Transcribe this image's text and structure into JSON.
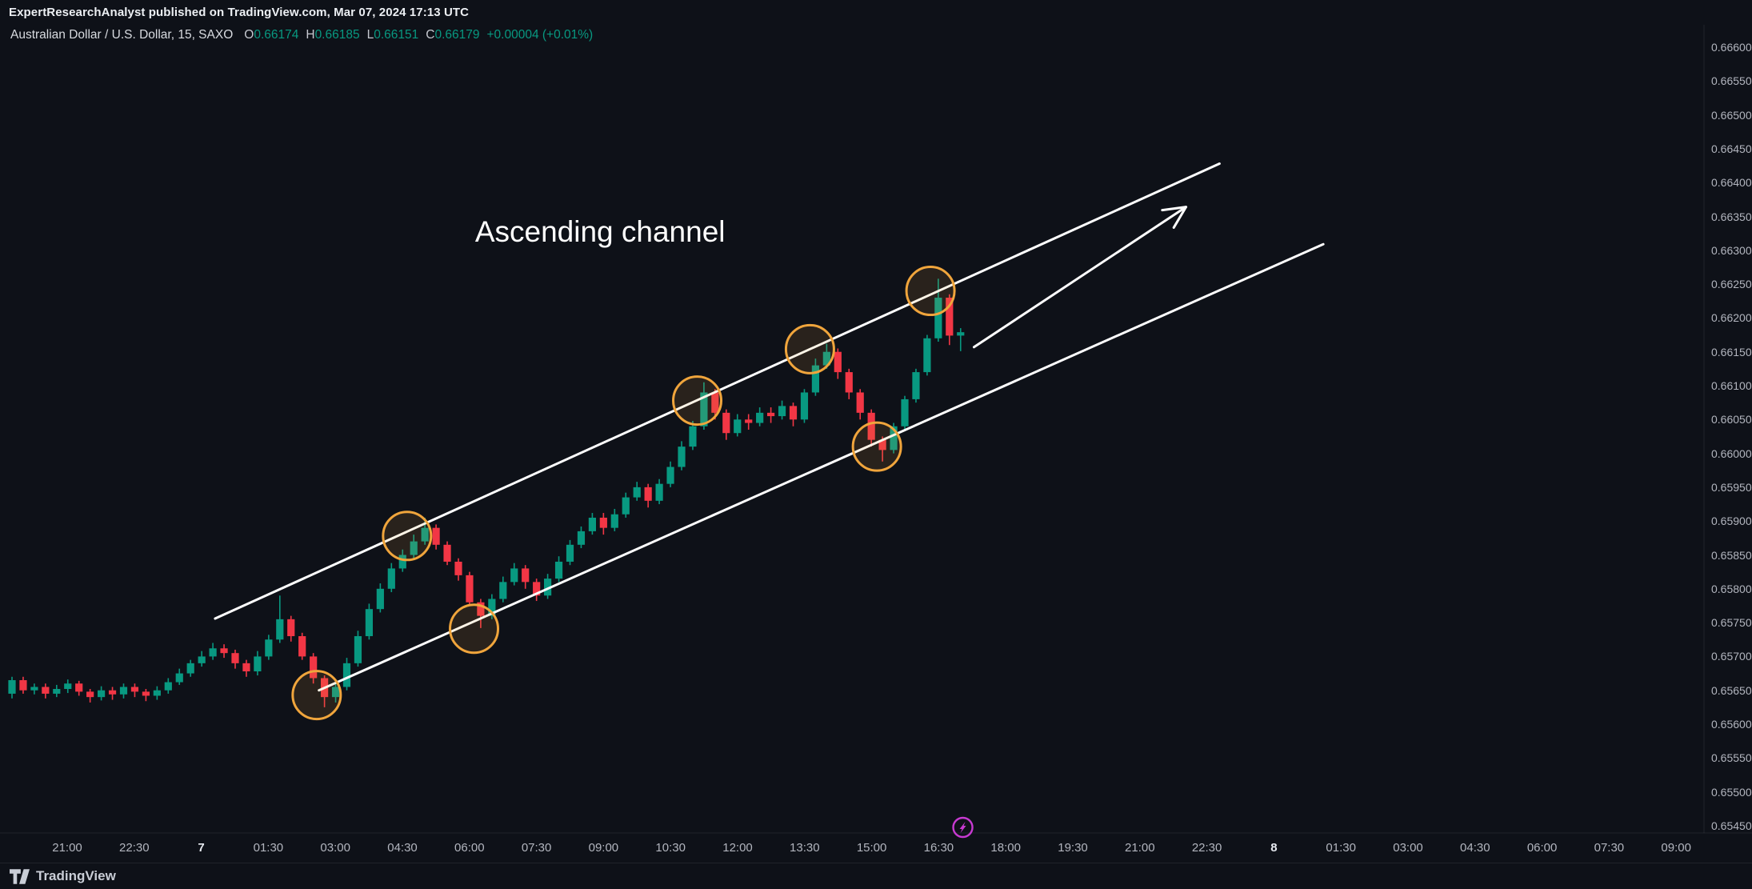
{
  "attribution": "ExpertResearchAnalyst published on TradingView.com, Mar 07, 2024 17:13 UTC",
  "legend": {
    "symbol": "Australian Dollar / U.S. Dollar, 15, SAXO",
    "open_label": "O",
    "open_value": "0.66174",
    "high_label": "H",
    "high_value": "0.66185",
    "low_label": "L",
    "low_value": "0.66151",
    "close_label": "C",
    "close_value": "0.66179",
    "change": "+0.00004 (+0.01%)"
  },
  "colors": {
    "background": "#0e1118",
    "up": "#089981",
    "down": "#f23645",
    "axis_text": "#b2b5be",
    "annotation": "#ffffff",
    "circle": "#f0a53c",
    "circle_fill": "rgba(240,165,60,0.12)",
    "event": "#c73ad1"
  },
  "event_marker": {
    "i": 85.2
  },
  "footer": {
    "brand": "TradingView"
  },
  "chart_data": {
    "type": "candlestick",
    "title": "Australian Dollar / U.S. Dollar, 15, SAXO",
    "ylim": [
      0.6545,
      0.666
    ],
    "grid": false,
    "price_axis": {
      "side": "right",
      "step": 0.0005,
      "labels": [
        "0.66600",
        "0.66550",
        "0.66500",
        "0.66450",
        "0.66400",
        "0.66350",
        "0.66300",
        "0.66250",
        "0.66200",
        "0.66150",
        "0.66100",
        "0.66050",
        "0.66000",
        "0.65950",
        "0.65900",
        "0.65850",
        "0.65800",
        "0.65750",
        "0.65700",
        "0.65650",
        "0.65600",
        "0.65550",
        "0.65500",
        "0.65450"
      ]
    },
    "time_axis": {
      "labels": [
        {
          "text": "21:00"
        },
        {
          "text": "22:30"
        },
        {
          "text": "7",
          "emphasis": true
        },
        {
          "text": "01:30"
        },
        {
          "text": "03:00"
        },
        {
          "text": "04:30"
        },
        {
          "text": "06:00"
        },
        {
          "text": "07:30"
        },
        {
          "text": "09:00"
        },
        {
          "text": "10:30"
        },
        {
          "text": "12:00"
        },
        {
          "text": "13:30"
        },
        {
          "text": "15:00"
        },
        {
          "text": "16:30"
        },
        {
          "text": "18:00"
        },
        {
          "text": "19:30"
        },
        {
          "text": "21:00"
        },
        {
          "text": "22:30"
        },
        {
          "text": "8",
          "emphasis": true
        },
        {
          "text": "01:30"
        },
        {
          "text": "03:00"
        },
        {
          "text": "04:30"
        },
        {
          "text": "06:00"
        },
        {
          "text": "07:30"
        },
        {
          "text": "09:00"
        }
      ]
    },
    "candles": [
      [
        0.65645,
        0.6567,
        0.65638,
        0.65665
      ],
      [
        0.65665,
        0.6567,
        0.65645,
        0.6565
      ],
      [
        0.6565,
        0.6566,
        0.65644,
        0.65655
      ],
      [
        0.65655,
        0.6566,
        0.65638,
        0.65645
      ],
      [
        0.65645,
        0.65658,
        0.6564,
        0.65652
      ],
      [
        0.65652,
        0.65666,
        0.65646,
        0.6566
      ],
      [
        0.6566,
        0.65664,
        0.65642,
        0.65648
      ],
      [
        0.65648,
        0.65652,
        0.65632,
        0.6564
      ],
      [
        0.6564,
        0.65656,
        0.65635,
        0.6565
      ],
      [
        0.6565,
        0.65655,
        0.65636,
        0.65644
      ],
      [
        0.65644,
        0.6566,
        0.65638,
        0.65655
      ],
      [
        0.65655,
        0.6566,
        0.6564,
        0.65648
      ],
      [
        0.65648,
        0.65652,
        0.65634,
        0.65642
      ],
      [
        0.65642,
        0.65656,
        0.65636,
        0.6565
      ],
      [
        0.6565,
        0.65668,
        0.65645,
        0.65662
      ],
      [
        0.65662,
        0.65682,
        0.65658,
        0.65675
      ],
      [
        0.65675,
        0.65695,
        0.6567,
        0.6569
      ],
      [
        0.6569,
        0.65708,
        0.65685,
        0.657
      ],
      [
        0.657,
        0.6572,
        0.65695,
        0.65712
      ],
      [
        0.65712,
        0.65718,
        0.65698,
        0.65705
      ],
      [
        0.65705,
        0.6571,
        0.65682,
        0.6569
      ],
      [
        0.6569,
        0.65695,
        0.6567,
        0.65678
      ],
      [
        0.65678,
        0.65708,
        0.65672,
        0.657
      ],
      [
        0.657,
        0.65732,
        0.65695,
        0.65725
      ],
      [
        0.65725,
        0.6579,
        0.6572,
        0.65755
      ],
      [
        0.65755,
        0.6576,
        0.65722,
        0.6573
      ],
      [
        0.6573,
        0.65735,
        0.65695,
        0.657
      ],
      [
        0.657,
        0.65705,
        0.6566,
        0.65668
      ],
      [
        0.65668,
        0.65672,
        0.65625,
        0.6564
      ],
      [
        0.6564,
        0.65662,
        0.65632,
        0.65655
      ],
      [
        0.65655,
        0.65698,
        0.6565,
        0.6569
      ],
      [
        0.6569,
        0.65738,
        0.65685,
        0.6573
      ],
      [
        0.6573,
        0.65778,
        0.65725,
        0.6577
      ],
      [
        0.6577,
        0.65808,
        0.65765,
        0.658
      ],
      [
        0.658,
        0.65838,
        0.65795,
        0.6583
      ],
      [
        0.6583,
        0.65858,
        0.65825,
        0.6585
      ],
      [
        0.6585,
        0.6588,
        0.65845,
        0.6587
      ],
      [
        0.6587,
        0.65905,
        0.65865,
        0.6589
      ],
      [
        0.6589,
        0.65895,
        0.65858,
        0.65865
      ],
      [
        0.65865,
        0.6587,
        0.65835,
        0.6584
      ],
      [
        0.6584,
        0.65845,
        0.65812,
        0.6582
      ],
      [
        0.6582,
        0.65825,
        0.65775,
        0.6578
      ],
      [
        0.6578,
        0.65785,
        0.65742,
        0.6576
      ],
      [
        0.6576,
        0.65792,
        0.65755,
        0.65785
      ],
      [
        0.65785,
        0.65818,
        0.6578,
        0.6581
      ],
      [
        0.6581,
        0.65838,
        0.65805,
        0.6583
      ],
      [
        0.6583,
        0.65835,
        0.658,
        0.6581
      ],
      [
        0.6581,
        0.65815,
        0.65782,
        0.6579
      ],
      [
        0.6579,
        0.65822,
        0.65785,
        0.65815
      ],
      [
        0.65815,
        0.65848,
        0.6581,
        0.6584
      ],
      [
        0.6584,
        0.65872,
        0.65835,
        0.65865
      ],
      [
        0.65865,
        0.65892,
        0.6586,
        0.65885
      ],
      [
        0.65885,
        0.65912,
        0.6588,
        0.65905
      ],
      [
        0.65905,
        0.65912,
        0.6588,
        0.6589
      ],
      [
        0.6589,
        0.65918,
        0.65885,
        0.6591
      ],
      [
        0.6591,
        0.65942,
        0.65905,
        0.65935
      ],
      [
        0.65935,
        0.65958,
        0.6593,
        0.6595
      ],
      [
        0.6595,
        0.65955,
        0.6592,
        0.6593
      ],
      [
        0.6593,
        0.65962,
        0.65925,
        0.65955
      ],
      [
        0.65955,
        0.65988,
        0.6595,
        0.6598
      ],
      [
        0.6598,
        0.66018,
        0.65975,
        0.6601
      ],
      [
        0.6601,
        0.66048,
        0.66005,
        0.6604
      ],
      [
        0.6604,
        0.66105,
        0.66035,
        0.6609
      ],
      [
        0.6609,
        0.66095,
        0.6605,
        0.6606
      ],
      [
        0.6606,
        0.66065,
        0.6602,
        0.6603
      ],
      [
        0.6603,
        0.66058,
        0.66025,
        0.6605
      ],
      [
        0.6605,
        0.66058,
        0.66035,
        0.66045
      ],
      [
        0.66045,
        0.66068,
        0.6604,
        0.6606
      ],
      [
        0.6606,
        0.66068,
        0.66045,
        0.66055
      ],
      [
        0.66055,
        0.66078,
        0.6605,
        0.6607
      ],
      [
        0.6607,
        0.66075,
        0.6604,
        0.6605
      ],
      [
        0.6605,
        0.66095,
        0.66045,
        0.6609
      ],
      [
        0.6609,
        0.6614,
        0.66085,
        0.6613
      ],
      [
        0.6613,
        0.66162,
        0.66125,
        0.6615
      ],
      [
        0.6615,
        0.66155,
        0.6611,
        0.6612
      ],
      [
        0.6612,
        0.66125,
        0.6608,
        0.6609
      ],
      [
        0.6609,
        0.66095,
        0.6605,
        0.6606
      ],
      [
        0.6606,
        0.66065,
        0.6601,
        0.6602
      ],
      [
        0.6602,
        0.66025,
        0.65988,
        0.66005
      ],
      [
        0.66005,
        0.66045,
        0.66,
        0.6604
      ],
      [
        0.6604,
        0.66085,
        0.66035,
        0.6608
      ],
      [
        0.6608,
        0.66125,
        0.66075,
        0.6612
      ],
      [
        0.6612,
        0.66175,
        0.66115,
        0.6617
      ],
      [
        0.6617,
        0.66258,
        0.66165,
        0.6623
      ],
      [
        0.6623,
        0.66235,
        0.6616,
        0.66174
      ],
      [
        0.66174,
        0.66185,
        0.66151,
        0.66179
      ]
    ],
    "annotations": {
      "label": {
        "text": "Ascending channel",
        "i": 52.7,
        "p": 0.66327
      },
      "channel": {
        "upper": {
          "i1": 18.2,
          "p1": 0.65756,
          "i2": 108.2,
          "p2": 0.66428
        },
        "lower": {
          "i1": 27.5,
          "p1": 0.6565,
          "i2": 117.5,
          "p2": 0.66309
        }
      },
      "arrow": {
        "i1": 86.2,
        "p1": 0.66157,
        "i2": 105.2,
        "p2": 0.66364
      },
      "circles": [
        {
          "i": 27.3,
          "p": 0.65643
        },
        {
          "i": 35.4,
          "p": 0.65878
        },
        {
          "i": 41.4,
          "p": 0.65741
        },
        {
          "i": 61.4,
          "p": 0.66078
        },
        {
          "i": 71.5,
          "p": 0.66154
        },
        {
          "i": 77.5,
          "p": 0.6601
        },
        {
          "i": 82.3,
          "p": 0.6624
        }
      ]
    }
  }
}
